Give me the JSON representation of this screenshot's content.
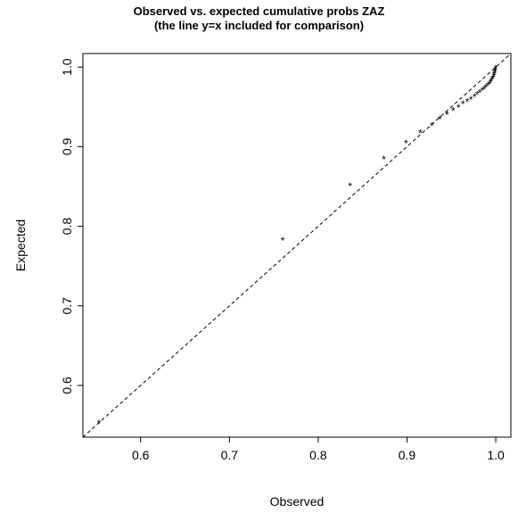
{
  "chart_data": {
    "type": "scatter",
    "title": "Observed vs. expected cumulative probs ZAZ",
    "subtitle": "(the line y=x included for comparison)",
    "xlabel": "Observed",
    "ylabel": "Expected",
    "xlim": [
      0.535,
      1.017
    ],
    "ylim": [
      0.535,
      1.017
    ],
    "xticks": [
      "0.6",
      "0.7",
      "0.8",
      "0.9",
      "1.0"
    ],
    "yticks": [
      "0.6",
      "0.7",
      "0.8",
      "0.9",
      "1.0"
    ],
    "marker": "*",
    "reference_line": "y=x, dashed",
    "grid": false,
    "points": [
      {
        "x": 0.553,
        "y": 0.553
      },
      {
        "x": 0.76,
        "y": 0.783
      },
      {
        "x": 0.836,
        "y": 0.851
      },
      {
        "x": 0.874,
        "y": 0.885
      },
      {
        "x": 0.899,
        "y": 0.905
      },
      {
        "x": 0.915,
        "y": 0.918
      },
      {
        "x": 0.928,
        "y": 0.927
      },
      {
        "x": 0.937,
        "y": 0.935
      },
      {
        "x": 0.945,
        "y": 0.941
      },
      {
        "x": 0.952,
        "y": 0.946
      },
      {
        "x": 0.958,
        "y": 0.95
      },
      {
        "x": 0.963,
        "y": 0.954
      },
      {
        "x": 0.968,
        "y": 0.957
      },
      {
        "x": 0.972,
        "y": 0.96
      },
      {
        "x": 0.976,
        "y": 0.963
      },
      {
        "x": 0.979,
        "y": 0.966
      },
      {
        "x": 0.982,
        "y": 0.968
      },
      {
        "x": 0.985,
        "y": 0.971
      },
      {
        "x": 0.987,
        "y": 0.973
      },
      {
        "x": 0.989,
        "y": 0.975
      },
      {
        "x": 0.991,
        "y": 0.977
      },
      {
        "x": 0.993,
        "y": 0.979
      },
      {
        "x": 0.994,
        "y": 0.981
      },
      {
        "x": 0.995,
        "y": 0.983
      },
      {
        "x": 0.996,
        "y": 0.985
      },
      {
        "x": 0.997,
        "y": 0.987
      },
      {
        "x": 0.998,
        "y": 0.989
      },
      {
        "x": 0.998,
        "y": 0.991
      },
      {
        "x": 0.999,
        "y": 0.993
      },
      {
        "x": 0.999,
        "y": 0.995
      },
      {
        "x": 0.9995,
        "y": 0.997
      },
      {
        "x": 1.0,
        "y": 0.999
      }
    ]
  }
}
